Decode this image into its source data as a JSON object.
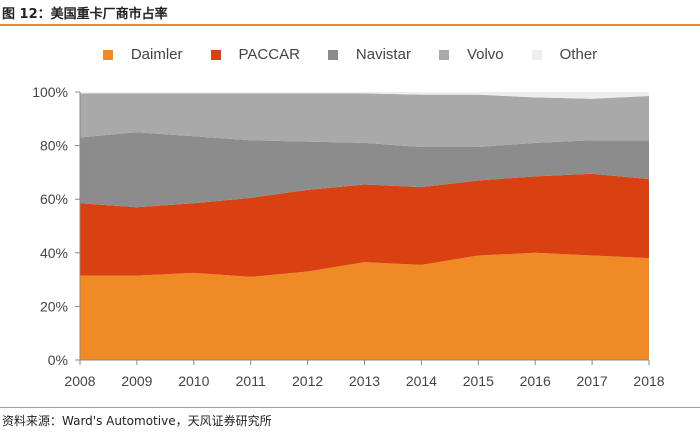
{
  "header": {
    "title": "图 12：美国重卡厂商市占率"
  },
  "footer": {
    "source": "资料来源：Ward's Automotive，天风证券研究所"
  },
  "colors": {
    "accent_rule": "#ee8a2d"
  },
  "chart_data": {
    "type": "area",
    "stacked": true,
    "title": "图 12：美国重卡厂商市占率",
    "xlabel": "",
    "ylabel": "",
    "x": [
      "2008",
      "2009",
      "2010",
      "2011",
      "2012",
      "2013",
      "2014",
      "2015",
      "2016",
      "2017",
      "2018"
    ],
    "ylim": [
      0,
      100
    ],
    "yticks": [
      "0%",
      "20%",
      "40%",
      "60%",
      "80%",
      "100%"
    ],
    "legend_position": "top-center",
    "series": [
      {
        "name": "Daimler",
        "color": "#f08a24",
        "values": [
          31.5,
          31.5,
          32.5,
          31.0,
          33.0,
          36.5,
          35.5,
          39.0,
          40.0,
          39.0,
          38.0
        ]
      },
      {
        "name": "PACCAR",
        "color": "#d94012",
        "values": [
          27.0,
          25.5,
          26.0,
          29.5,
          30.5,
          29.0,
          29.0,
          28.0,
          28.5,
          30.5,
          29.5
        ]
      },
      {
        "name": "Navistar",
        "color": "#8c8c8c",
        "values": [
          24.5,
          28.0,
          25.0,
          21.5,
          18.0,
          15.5,
          15.0,
          12.5,
          12.5,
          12.5,
          14.5
        ]
      },
      {
        "name": "Volvo",
        "color": "#a9a9a9",
        "values": [
          16.5,
          14.5,
          16.0,
          17.5,
          18.0,
          18.5,
          19.5,
          19.5,
          17.0,
          15.5,
          16.5
        ]
      },
      {
        "name": "Other",
        "color": "#eeeeee",
        "values": [
          0.5,
          0.5,
          0.5,
          0.5,
          0.5,
          0.5,
          1.0,
          1.0,
          2.0,
          2.5,
          1.5
        ]
      }
    ]
  }
}
